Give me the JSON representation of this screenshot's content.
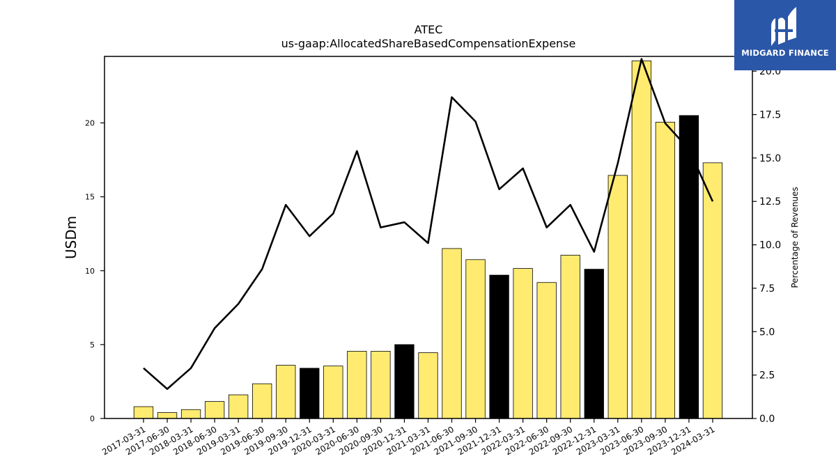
{
  "brand": {
    "name": "MIDGARD FINANCE",
    "logo_icon": "midgard-m-logo-icon",
    "background": "#2b57a8"
  },
  "chart_data": {
    "type": "bar",
    "title": "ATEC",
    "subtitle": "us-gaap:AllocatedShareBasedCompensationExpense",
    "ylabel": "USDm",
    "y2label": "Percentage of Revenues",
    "ylim": [
      0,
      24.5
    ],
    "y2lim": [
      0,
      20.85
    ],
    "yticks": [
      "0",
      "5",
      "10",
      "15",
      "20"
    ],
    "y2ticks": [
      "0.0",
      "2.5",
      "5.0",
      "7.5",
      "10.0",
      "12.5",
      "15.0",
      "17.5",
      "20.0"
    ],
    "grid": false,
    "bar_color": "#ffeb70",
    "highlight_color": "#000000",
    "line_color": "#000000",
    "categories": [
      "2017-03-31",
      "2017-06-30",
      "2018-03-31",
      "2018-06-30",
      "2019-03-31",
      "2019-06-30",
      "2019-09-30",
      "2019-12-31",
      "2020-03-31",
      "2020-06-30",
      "2020-09-30",
      "2020-12-31",
      "2021-03-31",
      "2021-06-30",
      "2021-09-30",
      "2021-12-31",
      "2022-03-31",
      "2022-06-30",
      "2022-09-30",
      "2022-12-31",
      "2023-03-31",
      "2023-06-30",
      "2023-09-30",
      "2023-12-31",
      "2024-03-31"
    ],
    "series": [
      {
        "name": "USDm",
        "type": "bar",
        "values": [
          0.8,
          0.4,
          0.6,
          1.15,
          1.6,
          2.35,
          3.6,
          3.4,
          3.55,
          4.55,
          4.55,
          5.0,
          4.45,
          11.5,
          10.75,
          9.7,
          10.15,
          9.2,
          11.05,
          10.1,
          16.45,
          24.2,
          20.05,
          20.5,
          17.3
        ],
        "highlighted": [
          false,
          false,
          false,
          false,
          false,
          false,
          false,
          true,
          false,
          false,
          false,
          true,
          false,
          false,
          false,
          true,
          false,
          false,
          false,
          true,
          false,
          false,
          false,
          true,
          false
        ]
      },
      {
        "name": "Percentage of Revenues",
        "type": "line",
        "axis": "right",
        "values": [
          2.9,
          1.7,
          2.9,
          5.2,
          6.6,
          8.6,
          12.3,
          10.5,
          11.8,
          15.4,
          11.0,
          11.3,
          10.1,
          18.5,
          17.1,
          13.2,
          14.4,
          11.0,
          12.3,
          9.6,
          14.7,
          20.7,
          17.0,
          15.5,
          12.5
        ]
      }
    ]
  }
}
